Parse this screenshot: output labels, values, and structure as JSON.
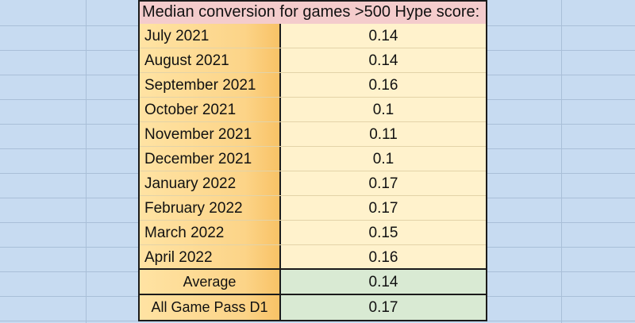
{
  "table": {
    "title": "Median conversion for games >500 Hype score:",
    "months": [
      {
        "label": "July 2021",
        "value": "0.14"
      },
      {
        "label": "August 2021",
        "value": "0.14"
      },
      {
        "label": "September 2021",
        "value": "0.16"
      },
      {
        "label": "October 2021",
        "value": "0.1"
      },
      {
        "label": "November 2021",
        "value": "0.11"
      },
      {
        "label": "December 2021",
        "value": "0.1"
      },
      {
        "label": "January 2022",
        "value": "0.17"
      },
      {
        "label": "February 2022",
        "value": "0.17"
      },
      {
        "label": "March 2022",
        "value": "0.15"
      },
      {
        "label": "April 2022",
        "value": "0.16"
      }
    ],
    "summary": [
      {
        "label": "Average",
        "value": "0.14"
      },
      {
        "label": "All Game Pass D1",
        "value": "0.17"
      }
    ]
  },
  "colors": {
    "title_fill": "#f4cccc",
    "label_fill": "#fcd488",
    "value_fill": "#fff2cc",
    "summary_value_fill": "#d9ead3",
    "sheet_background": "#c7dbf1"
  }
}
